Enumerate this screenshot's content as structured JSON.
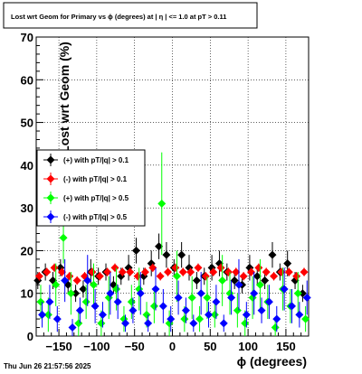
{
  "chart_data": {
    "type": "scatter",
    "title": "Lost wrt Geom for Primary vs ϕ (degrees) at |  η  | <= 1.0 at pT > 0.11",
    "xlabel": "ϕ (degrees)",
    "ylabel": "Lost wrt Geom (%)",
    "xlim": [
      -180,
      180
    ],
    "ylim": [
      0,
      70
    ],
    "x_ticks": [
      -150,
      -100,
      -50,
      0,
      50,
      100,
      150
    ],
    "x_tick_labels": [
      "−150",
      "−100",
      "−50",
      "0",
      "50",
      "100",
      "150"
    ],
    "y_ticks": [
      0,
      10,
      20,
      30,
      40,
      50,
      60,
      70
    ],
    "y_tick_labels": [
      "0",
      "10",
      "20",
      "30",
      "40",
      "50",
      "60",
      "70"
    ],
    "grid": true,
    "legend_position": "left-middle",
    "series": [
      {
        "name": "(+) with pT/|q| > 0.1",
        "color": "#000000",
        "x": [
          -175,
          -165,
          -155,
          -145,
          -135,
          -125,
          -115,
          -105,
          -95,
          -85,
          -75,
          -65,
          -55,
          -45,
          -35,
          -25,
          -15,
          -5,
          5,
          15,
          25,
          35,
          45,
          55,
          65,
          75,
          85,
          95,
          105,
          115,
          125,
          135,
          145,
          155,
          165,
          175
        ],
        "y": [
          13,
          15,
          13,
          16,
          12,
          10,
          11,
          15,
          14,
          15,
          12,
          14,
          16,
          20,
          14,
          17,
          21,
          19,
          16,
          19,
          16,
          13,
          14,
          16,
          17,
          15,
          13,
          12,
          16,
          14,
          13,
          19,
          15,
          17,
          13,
          10
        ],
        "err": [
          2,
          2,
          2,
          2,
          2,
          2,
          2,
          3,
          2,
          2,
          2,
          2,
          3,
          3,
          2,
          3,
          3,
          3,
          2,
          3,
          3,
          2,
          2,
          3,
          3,
          2,
          2,
          2,
          3,
          2,
          2,
          3,
          2,
          3,
          2,
          2
        ]
      },
      {
        "name": "(-) with pT/|q| > 0.1",
        "color": "#ff0000",
        "x": [
          -175,
          -165,
          -155,
          -145,
          -135,
          -125,
          -115,
          -105,
          -95,
          -85,
          -75,
          -65,
          -55,
          -45,
          -35,
          -25,
          -15,
          -5,
          5,
          15,
          25,
          35,
          45,
          55,
          65,
          75,
          85,
          95,
          105,
          115,
          125,
          135,
          145,
          155,
          165,
          175
        ],
        "y": [
          14,
          15,
          16,
          15,
          14,
          13,
          14,
          15,
          14,
          15,
          16,
          15,
          15,
          14,
          15,
          16,
          14,
          15,
          16,
          15,
          15,
          16,
          14,
          15,
          16,
          15,
          15,
          14,
          15,
          16,
          15,
          14,
          15,
          15,
          14,
          15
        ],
        "err": [
          1,
          1,
          1,
          1,
          1,
          1,
          1,
          1,
          1,
          1,
          1,
          1,
          1,
          1,
          1,
          1,
          1,
          1,
          1,
          1,
          1,
          1,
          1,
          1,
          1,
          1,
          1,
          1,
          1,
          1,
          1,
          1,
          1,
          1,
          1,
          1
        ]
      },
      {
        "name": "(+) with pT/|q| > 0.5",
        "color": "#00ff00",
        "x": [
          -175,
          -165,
          -155,
          -145,
          -135,
          -125,
          -115,
          -105,
          -95,
          -85,
          -75,
          -65,
          -55,
          -45,
          -35,
          -25,
          -15,
          -5,
          5,
          15,
          25,
          35,
          45,
          55,
          65,
          75,
          85,
          95,
          105,
          115,
          125,
          135,
          145,
          155,
          165,
          175
        ],
        "y": [
          8,
          5,
          12,
          23,
          10,
          3,
          8,
          12,
          3,
          9,
          11,
          4,
          8,
          11,
          5,
          7,
          31,
          3,
          14,
          4,
          9,
          4,
          9,
          5,
          13,
          10,
          6,
          3,
          9,
          12,
          8,
          2,
          11,
          7,
          10,
          4
        ],
        "err": [
          4,
          4,
          5,
          6,
          5,
          3,
          4,
          5,
          3,
          5,
          5,
          3,
          4,
          5,
          3,
          4,
          12,
          3,
          6,
          3,
          5,
          3,
          5,
          3,
          6,
          5,
          4,
          3,
          5,
          6,
          4,
          2,
          5,
          4,
          5,
          3
        ]
      },
      {
        "name": "(-) with pT/|q| > 0.5",
        "color": "#0000ff",
        "x": [
          -175,
          -165,
          -155,
          -145,
          -135,
          -125,
          -115,
          -105,
          -95,
          -85,
          -75,
          -65,
          -55,
          -45,
          -35,
          -25,
          -15,
          -5,
          5,
          15,
          25,
          35,
          45,
          55,
          65,
          75,
          85,
          95,
          105,
          115,
          125,
          135,
          145,
          155,
          165,
          175
        ],
        "y": [
          5,
          8,
          4,
          13,
          2,
          6,
          13,
          7,
          5,
          10,
          8,
          3,
          6,
          10,
          3,
          11,
          7,
          4,
          9,
          6,
          3,
          10,
          5,
          8,
          3,
          9,
          12,
          5,
          10,
          6,
          8,
          4,
          11,
          7,
          5,
          9
        ],
        "err": [
          3,
          4,
          3,
          5,
          2,
          3,
          6,
          4,
          3,
          5,
          4,
          2,
          3,
          5,
          2,
          5,
          4,
          3,
          4,
          3,
          2,
          5,
          3,
          4,
          2,
          4,
          6,
          3,
          5,
          3,
          4,
          3,
          5,
          4,
          3,
          4
        ]
      }
    ]
  },
  "footer": {
    "timestamp": "Thu Jun 26 21:57:56 2025"
  }
}
